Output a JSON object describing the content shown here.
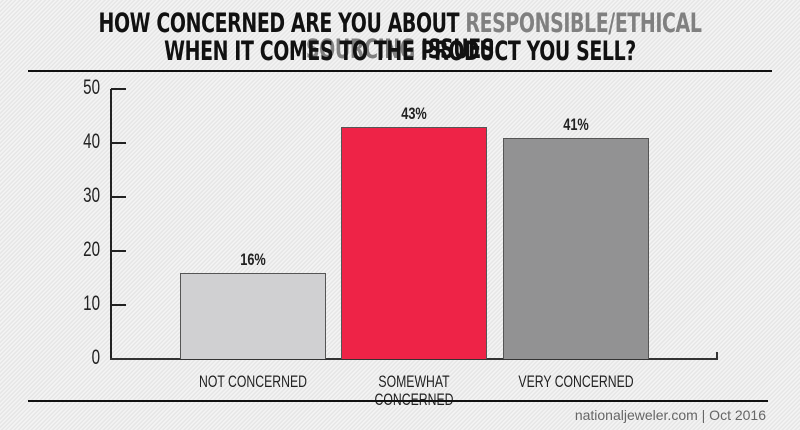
{
  "title": {
    "line1_prefix": "HOW CONCERNED ARE YOU ABOUT ",
    "line1_highlight": "RESPONSIBLE/ETHICAL SOURCING",
    "line1_suffix": " ISSUES",
    "line2": "WHEN IT COMES TO THE PRODUCT YOU SELL?"
  },
  "credit": "nationaljeweler.com | Oct 2016",
  "colors": {
    "highlight": "#808080",
    "not_concerned": "#d0d0d2",
    "somewhat_concerned": "#ee2347",
    "very_concerned": "#929293"
  },
  "y_ticks": [
    "50",
    "40",
    "30",
    "20",
    "10",
    "0"
  ],
  "bars": [
    {
      "label": "NOT CONCERNED",
      "value_label": "16%"
    },
    {
      "label": "SOMEWHAT CONCERNED",
      "value_label": "43%"
    },
    {
      "label": "VERY CONCERNED",
      "value_label": "41%"
    }
  ],
  "chart_data": {
    "type": "bar",
    "title": "How concerned are you about responsible/ethical sourcing issues when it comes to the product you sell?",
    "categories": [
      "NOT CONCERNED",
      "SOMEWHAT CONCERNED",
      "VERY CONCERNED"
    ],
    "values": [
      16,
      43,
      41
    ],
    "data_labels": [
      "16%",
      "43%",
      "41%"
    ],
    "xlabel": "",
    "ylabel": "",
    "ylim": [
      0,
      50
    ],
    "yticks": [
      0,
      10,
      20,
      30,
      40,
      50
    ],
    "grid": false,
    "legend": "none",
    "source": "nationaljeweler.com | Oct 2016"
  }
}
